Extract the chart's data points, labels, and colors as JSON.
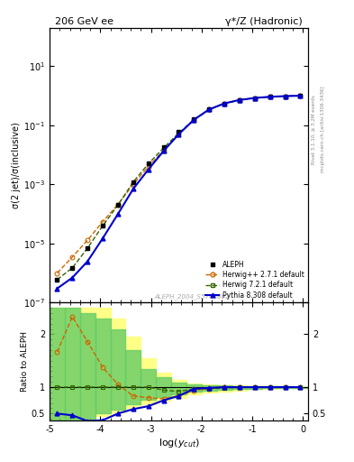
{
  "title_left": "206 GeV ee",
  "title_right": "γ*/Z (Hadronic)",
  "ylabel_main": "σ(2 jet)/σ(inclusive)",
  "ylabel_ratio": "Ratio to ALEPH",
  "xlabel": "log($y_{cut}$)",
  "watermark": "ALEPH_2004_S5765862",
  "right_label_top": "Rivet 3.1.10, ≥ 3.2M events",
  "right_label_bottom": "mcplots.cern.ch [arXiv:1306.3436]",
  "xmin": -5.0,
  "xmax": 0.1,
  "aleph_x": [
    -4.85,
    -4.55,
    -4.25,
    -3.95,
    -3.65,
    -3.35,
    -3.05,
    -2.75,
    -2.45,
    -2.15,
    -1.85,
    -1.55,
    -1.25,
    -0.95,
    -0.65,
    -0.35,
    -0.05
  ],
  "aleph_y": [
    6e-07,
    1.5e-06,
    7e-06,
    4e-05,
    0.0002,
    0.0012,
    0.005,
    0.018,
    0.06,
    0.16,
    0.35,
    0.55,
    0.72,
    0.84,
    0.92,
    0.97,
    1.0
  ],
  "herwig_pp_x": [
    -4.85,
    -4.55,
    -4.25,
    -3.95,
    -3.65,
    -3.35,
    -3.05,
    -2.75,
    -2.45,
    -2.15,
    -1.85,
    -1.55,
    -1.25,
    -0.95,
    -0.65,
    -0.35,
    -0.05
  ],
  "herwig_pp_y": [
    1e-06,
    3.5e-06,
    1.3e-05,
    5.5e-05,
    0.00021,
    0.001,
    0.004,
    0.014,
    0.05,
    0.15,
    0.34,
    0.55,
    0.72,
    0.84,
    0.92,
    0.97,
    1.0
  ],
  "herwig72_x": [
    -4.85,
    -4.55,
    -4.25,
    -3.95,
    -3.65,
    -3.35,
    -3.05,
    -2.75,
    -2.45,
    -2.15,
    -1.85,
    -1.55,
    -1.25,
    -0.95,
    -0.65,
    -0.35,
    -0.05
  ],
  "herwig72_y": [
    6e-07,
    1.5e-06,
    7e-06,
    4e-05,
    0.0002,
    0.0012,
    0.005,
    0.017,
    0.055,
    0.155,
    0.34,
    0.54,
    0.715,
    0.838,
    0.92,
    0.97,
    1.0
  ],
  "pythia_x": [
    -4.85,
    -4.55,
    -4.25,
    -3.95,
    -3.65,
    -3.35,
    -3.05,
    -2.75,
    -2.45,
    -2.15,
    -1.85,
    -1.55,
    -1.25,
    -0.95,
    -0.65,
    -0.35,
    -0.05
  ],
  "pythia_y": [
    3e-07,
    7e-07,
    2.5e-06,
    1.5e-05,
    0.0001,
    0.0007,
    0.0032,
    0.0135,
    0.05,
    0.155,
    0.345,
    0.55,
    0.72,
    0.84,
    0.92,
    0.97,
    1.0
  ],
  "green_band_x_edges": [
    -5.0,
    -4.7,
    -4.4,
    -4.1,
    -3.8,
    -3.5,
    -3.2,
    -2.9,
    -2.6,
    -2.3,
    -2.0,
    -1.7,
    -1.4,
    -1.1,
    -0.8,
    -0.5,
    -0.2,
    0.1
  ],
  "green_band_ylo": [
    0.37,
    0.37,
    0.37,
    0.5,
    0.58,
    0.68,
    0.76,
    0.82,
    0.87,
    0.91,
    0.93,
    0.95,
    0.96,
    0.97,
    0.98,
    0.99,
    0.99,
    1.0
  ],
  "green_band_yhi": [
    2.5,
    2.5,
    2.4,
    2.3,
    2.1,
    1.7,
    1.35,
    1.18,
    1.09,
    1.05,
    1.04,
    1.03,
    1.02,
    1.02,
    1.01,
    1.01,
    1.005,
    1.0
  ],
  "yellow_band_x_edges": [
    -5.0,
    -4.7,
    -4.4,
    -4.1,
    -3.8,
    -3.5,
    -3.2,
    -2.9,
    -2.6,
    -2.3,
    -2.0,
    -1.7,
    -1.4,
    -1.1,
    -0.8,
    -0.5,
    -0.2,
    0.1
  ],
  "yellow_band_ylo": [
    0.37,
    0.37,
    0.37,
    0.45,
    0.52,
    0.6,
    0.68,
    0.74,
    0.8,
    0.86,
    0.9,
    0.92,
    0.94,
    0.96,
    0.97,
    0.98,
    0.99,
    1.0
  ],
  "yellow_band_yhi": [
    2.5,
    2.5,
    2.5,
    2.5,
    2.3,
    1.95,
    1.55,
    1.28,
    1.14,
    1.07,
    1.05,
    1.04,
    1.03,
    1.02,
    1.015,
    1.01,
    1.005,
    1.0
  ],
  "color_aleph": "#000000",
  "color_herwig_pp": "#cc6600",
  "color_herwig72": "#336600",
  "color_pythia": "#0000cc",
  "color_green_band": "#66cc66",
  "color_yellow_band": "#ffff88",
  "ylim_main": [
    1e-07,
    200
  ],
  "ylim_ratio": [
    0.37,
    2.6
  ],
  "legend_labels": [
    "ALEPH",
    "Herwig++ 2.7.1 default",
    "Herwig 7.2.1 default",
    "Pythia 8.308 default"
  ]
}
